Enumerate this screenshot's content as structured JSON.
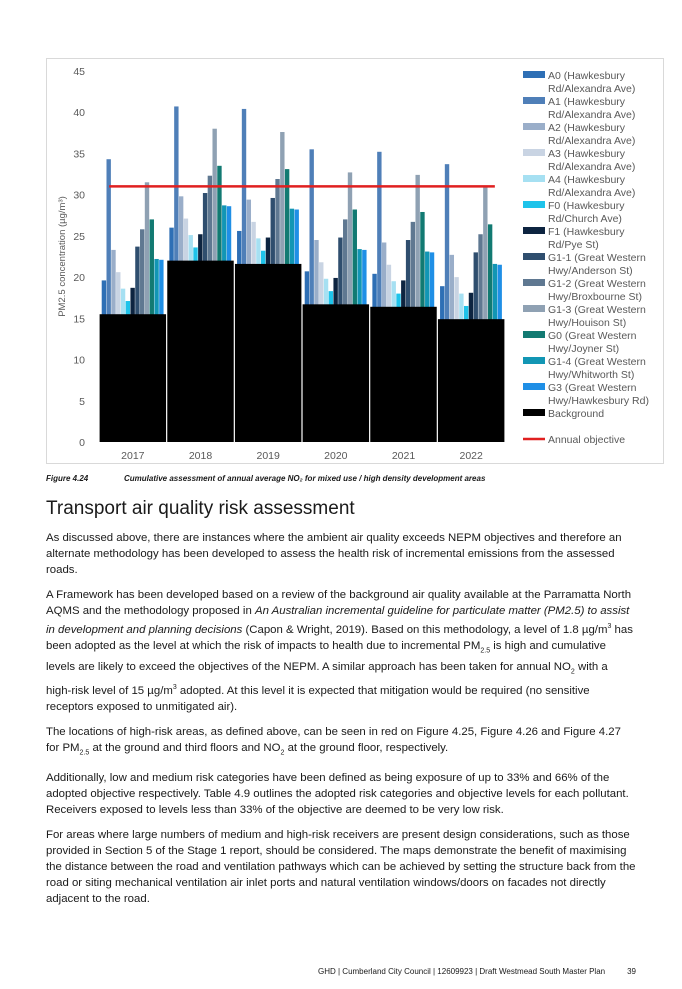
{
  "figure": {
    "number": "Figure 4.24",
    "caption": "Cumulative assessment of annual average NO₂ for mixed use / high density development areas"
  },
  "chart_data": {
    "type": "bar",
    "categories": [
      "2017",
      "2018",
      "2019",
      "2020",
      "2021",
      "2022"
    ],
    "ylabel": "PM2.5 concentration (µg/m³)",
    "ylim": [
      0,
      45
    ],
    "yticks": [
      0,
      5,
      10,
      15,
      20,
      25,
      30,
      35,
      40,
      45
    ],
    "series": [
      {
        "name": "A0 (Hawkesbury Rd/Alexandra Ave)",
        "color": "#2e6fb5",
        "values": [
          19.6,
          26.0,
          25.6,
          20.7,
          20.4,
          18.9
        ]
      },
      {
        "name": "A1 (Hawkesbury Rd/Alexandra Ave)",
        "color": "#4f7fb8",
        "values": [
          34.3,
          40.7,
          40.4,
          35.5,
          35.2,
          33.7
        ]
      },
      {
        "name": "A2 (Hawkesbury Rd/Alexandra Ave)",
        "color": "#9aaec9",
        "values": [
          23.3,
          29.8,
          29.4,
          24.5,
          24.2,
          22.7
        ]
      },
      {
        "name": "A3 (Hawkesbury Rd/Alexandra Ave)",
        "color": "#c9d4e3",
        "values": [
          20.6,
          27.1,
          26.7,
          21.8,
          21.5,
          20.0
        ]
      },
      {
        "name": "A4 (Hawkesbury Rd/Alexandra Ave)",
        "color": "#a6e0f2",
        "values": [
          18.6,
          25.1,
          24.7,
          19.8,
          19.5,
          18.0
        ]
      },
      {
        "name": "F0 (Hawkesbury Rd/Church Ave)",
        "color": "#1ec3ea",
        "values": [
          17.1,
          23.6,
          23.2,
          18.3,
          18.0,
          16.5
        ]
      },
      {
        "name": "F1 (Hawkesbury Rd/Pye St)",
        "color": "#0d2440",
        "values": [
          18.7,
          25.2,
          24.8,
          19.9,
          19.6,
          18.1
        ]
      },
      {
        "name": "G1-1 (Great Western Hwy/Anderson St)",
        "color": "#2f4e6e",
        "values": [
          23.7,
          30.2,
          29.6,
          24.8,
          24.5,
          23.0
        ]
      },
      {
        "name": "G1-2 (Great Western Hwy/Broxbourne St)",
        "color": "#5f7891",
        "values": [
          25.8,
          32.3,
          31.9,
          27.0,
          26.7,
          25.2
        ]
      },
      {
        "name": "G1-3 (Great Western Hwy/Houison St)",
        "color": "#8fa1b3",
        "values": [
          31.5,
          38.0,
          37.6,
          32.7,
          32.4,
          30.9
        ]
      },
      {
        "name": "G0 (Great Western Hwy/Joyner St)",
        "color": "#127a72",
        "values": [
          27.0,
          33.5,
          33.1,
          28.2,
          27.9,
          26.4
        ]
      },
      {
        "name": "G1-4 (Great Western Hwy/Whitworth St)",
        "color": "#1296b4",
        "values": [
          22.2,
          28.7,
          28.3,
          23.4,
          23.1,
          21.6
        ]
      },
      {
        "name": "G3 (Great Western Hwy/Hawkesbury Rd)",
        "color": "#1f8fe6",
        "values": [
          22.1,
          28.6,
          28.2,
          23.3,
          23.0,
          21.5
        ]
      }
    ],
    "background": {
      "name": "Background",
      "color": "#000000",
      "values": [
        15.5,
        22.0,
        21.6,
        16.7,
        16.4,
        14.9
      ]
    },
    "objective": {
      "name": "Annual objective",
      "color": "#e02020",
      "value": 31
    },
    "legend": "right"
  },
  "section_title": "Transport air quality risk assessment",
  "paragraphs": {
    "p1": "As discussed above, there are instances where the ambient air quality exceeds NEPM objectives and therefore an alternate methodology has been developed to assess the health risk of incremental emissions from the assessed roads.",
    "p2a": "A Framework has been developed based on a review of the background air quality available at the Parramatta North AQMS and the methodology proposed in ",
    "p2b": "An Australian incremental guideline for particulate matter (PM2.5) to assist in development and planning decisions",
    "p2c": " (Capon & Wright, 2019). Based on this methodology, a level of 1.8 µg/m",
    "p2d": " has been adopted as the level at which the risk of impacts to health due to incremental PM",
    "p2e": " is high and cumulative levels are likely to exceed the objectives of the NEPM. A similar approach has been taken for annual NO",
    "p2f": " with a high-risk level of 15 µg/m",
    "p2g": " adopted. At this level it is expected that mitigation would be required (no sensitive receptors exposed to unmitigated air).",
    "p3a": "The locations of high-risk areas, as defined above, can be seen in red on Figure 4.25, Figure 4.26 and Figure 4.27 for PM",
    "p3b": " at the ground and third floors and NO",
    "p3c": " at the ground floor, respectively.",
    "p4": "Additionally, low and medium risk categories have been defined as being exposure of up to 33% and 66% of the adopted objective respectively. Table 4.9 outlines the adopted risk categories and objective levels for each pollutant. Receivers exposed to levels less than 33% of the objective are deemed to be very low risk.",
    "p5": "For areas where large numbers of medium and high-risk receivers are present design considerations, such as those provided in Section 5 of the Stage 1 report, should be considered. The maps demonstrate the benefit of maximising the distance between the road and ventilation pathways which can be achieved by setting the structure back from the road or siting mechanical ventilation air inlet ports and natural ventilation windows/doors on facades not directly adjacent to the road.",
    "sup3": "3",
    "sub25": "2.5",
    "sub2": "2"
  },
  "footer": {
    "text": "GHD | Cumberland City Council | 12609923 | Draft Westmead South Master Plan",
    "page": "39"
  }
}
